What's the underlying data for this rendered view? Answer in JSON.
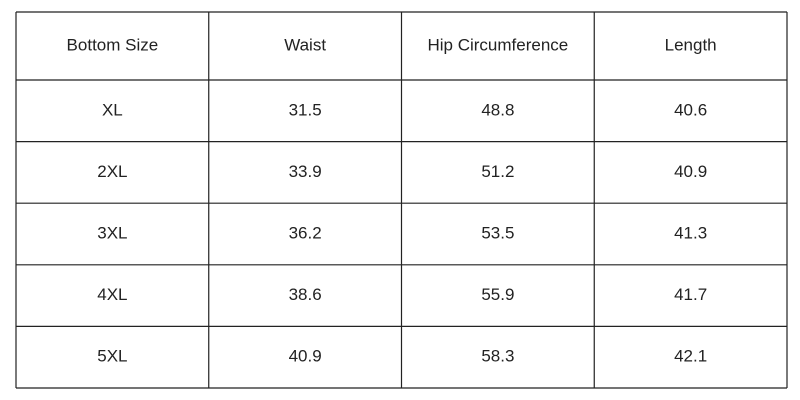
{
  "table": {
    "header": [
      "Bottom Size",
      "Waist",
      "Hip Circumference",
      "Length"
    ],
    "rows": [
      [
        "XL",
        "31.5",
        "48.8",
        "40.6"
      ],
      [
        "2XL",
        "33.9",
        "51.2",
        "40.9"
      ],
      [
        "3XL",
        "36.2",
        "53.5",
        "41.3"
      ],
      [
        "4XL",
        "38.6",
        "55.9",
        "41.7"
      ],
      [
        "5XL",
        "40.9",
        "58.3",
        "42.1"
      ]
    ]
  }
}
